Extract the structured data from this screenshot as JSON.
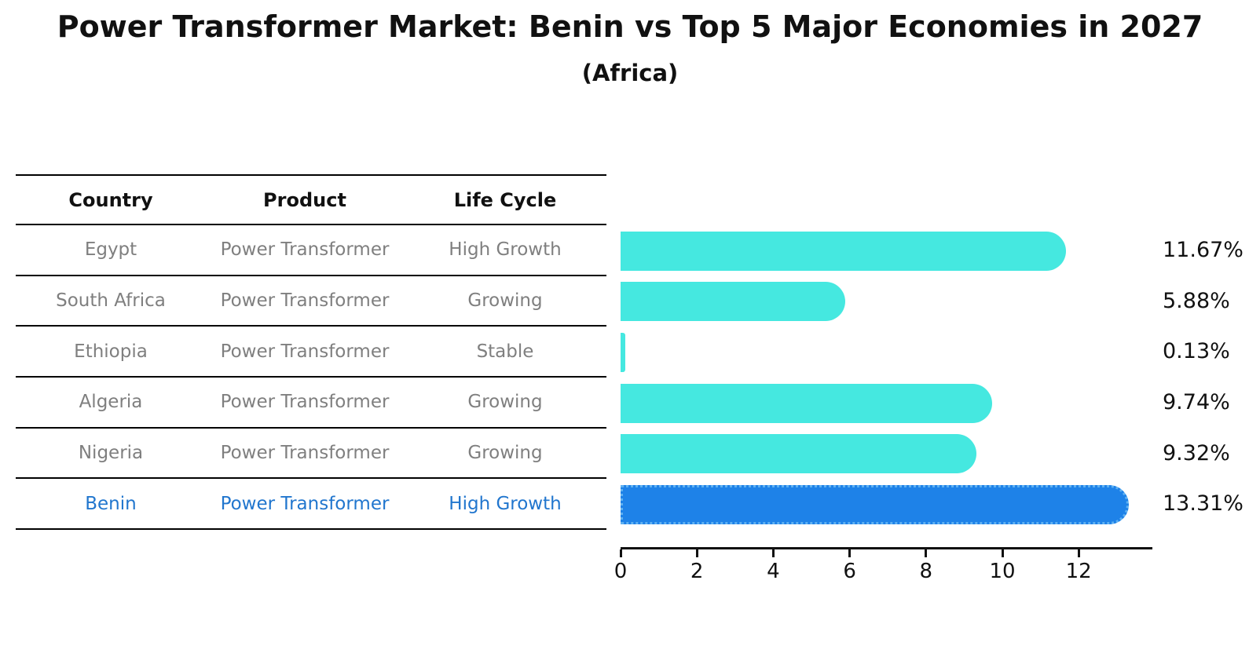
{
  "page": {
    "title": "Power Transformer Market: Benin vs Top 5 Major Economies in 2027",
    "subtitle": "(Africa)"
  },
  "table": {
    "headers": [
      "Country",
      "Product",
      "Life Cycle"
    ],
    "rows": [
      {
        "country": "Egypt",
        "product": "Power Transformer",
        "life_cycle": "High Growth",
        "highlight": false
      },
      {
        "country": "South Africa",
        "product": "Power Transformer",
        "life_cycle": "Growing",
        "highlight": false
      },
      {
        "country": "Ethiopia",
        "product": "Power Transformer",
        "life_cycle": "Stable",
        "highlight": false
      },
      {
        "country": "Algeria",
        "product": "Power Transformer",
        "life_cycle": "Growing",
        "highlight": false
      },
      {
        "country": "Nigeria",
        "product": "Power Transformer",
        "life_cycle": "Growing",
        "highlight": false
      },
      {
        "country": "Benin",
        "product": "Power Transformer",
        "life_cycle": "High Growth",
        "highlight": true
      }
    ]
  },
  "chart_data": {
    "type": "bar",
    "orientation": "horizontal",
    "title": "Power Transformer Market: Benin vs Top 5 Major Economies in 2027",
    "subtitle": "(Africa)",
    "categories": [
      "Egypt",
      "South Africa",
      "Ethiopia",
      "Algeria",
      "Nigeria",
      "Benin"
    ],
    "values": [
      11.67,
      5.88,
      0.13,
      9.74,
      9.32,
      13.31
    ],
    "value_labels": [
      "11.67%",
      "5.88%",
      "0.13%",
      "9.74%",
      "9.32%",
      "13.31%"
    ],
    "xlim": [
      0,
      13.93
    ],
    "xticks": [
      0,
      2,
      4,
      6,
      8,
      10,
      12
    ],
    "grid": false,
    "legend": false,
    "bar_color": "#45e8e0",
    "highlight_color": "#1e82e8",
    "highlight_index": 5
  },
  "colors": {
    "bar": "#45e8e0",
    "highlight_bar": "#1e82e8",
    "highlight_text": "#2176ce",
    "row_text": "#7f7f7f",
    "header_text": "#111111",
    "axis": "#111111"
  }
}
